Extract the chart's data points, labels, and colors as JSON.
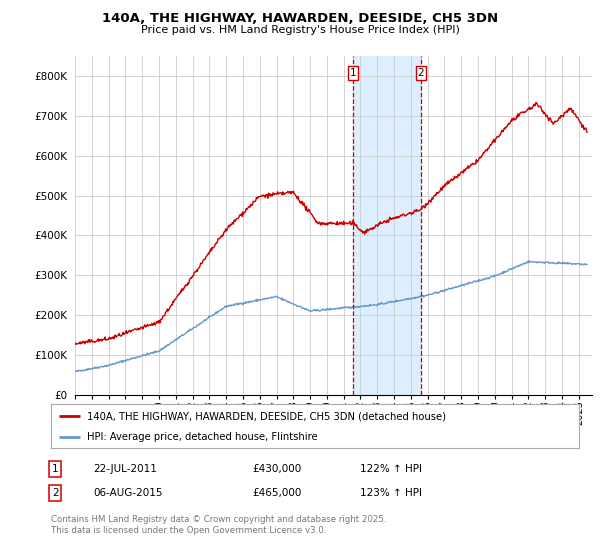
{
  "title": "140A, THE HIGHWAY, HAWARDEN, DEESIDE, CH5 3DN",
  "subtitle": "Price paid vs. HM Land Registry's House Price Index (HPI)",
  "xlim_start": 1995.0,
  "xlim_end": 2025.8,
  "ylim": [
    0,
    850000
  ],
  "yticks": [
    0,
    100000,
    200000,
    300000,
    400000,
    500000,
    600000,
    700000,
    800000
  ],
  "ytick_labels": [
    "£0",
    "£100K",
    "£200K",
    "£300K",
    "£400K",
    "£500K",
    "£600K",
    "£700K",
    "£800K"
  ],
  "marker1_x": 2011.55,
  "marker1_y": 430000,
  "marker2_x": 2015.6,
  "marker2_y": 465000,
  "shaded_x1": 2011.55,
  "shaded_x2": 2015.6,
  "legend_red_label": "140A, THE HIGHWAY, HAWARDEN, DEESIDE, CH5 3DN (detached house)",
  "legend_blue_label": "HPI: Average price, detached house, Flintshire",
  "table_row1": [
    "1",
    "22-JUL-2011",
    "£430,000",
    "122% ↑ HPI"
  ],
  "table_row2": [
    "2",
    "06-AUG-2015",
    "£465,000",
    "123% ↑ HPI"
  ],
  "footer": "Contains HM Land Registry data © Crown copyright and database right 2025.\nThis data is licensed under the Open Government Licence v3.0.",
  "red_color": "#cc0000",
  "blue_color": "#6699cc",
  "shade_color": "#ddeeff",
  "grid_color": "#cccccc",
  "background_color": "#ffffff"
}
